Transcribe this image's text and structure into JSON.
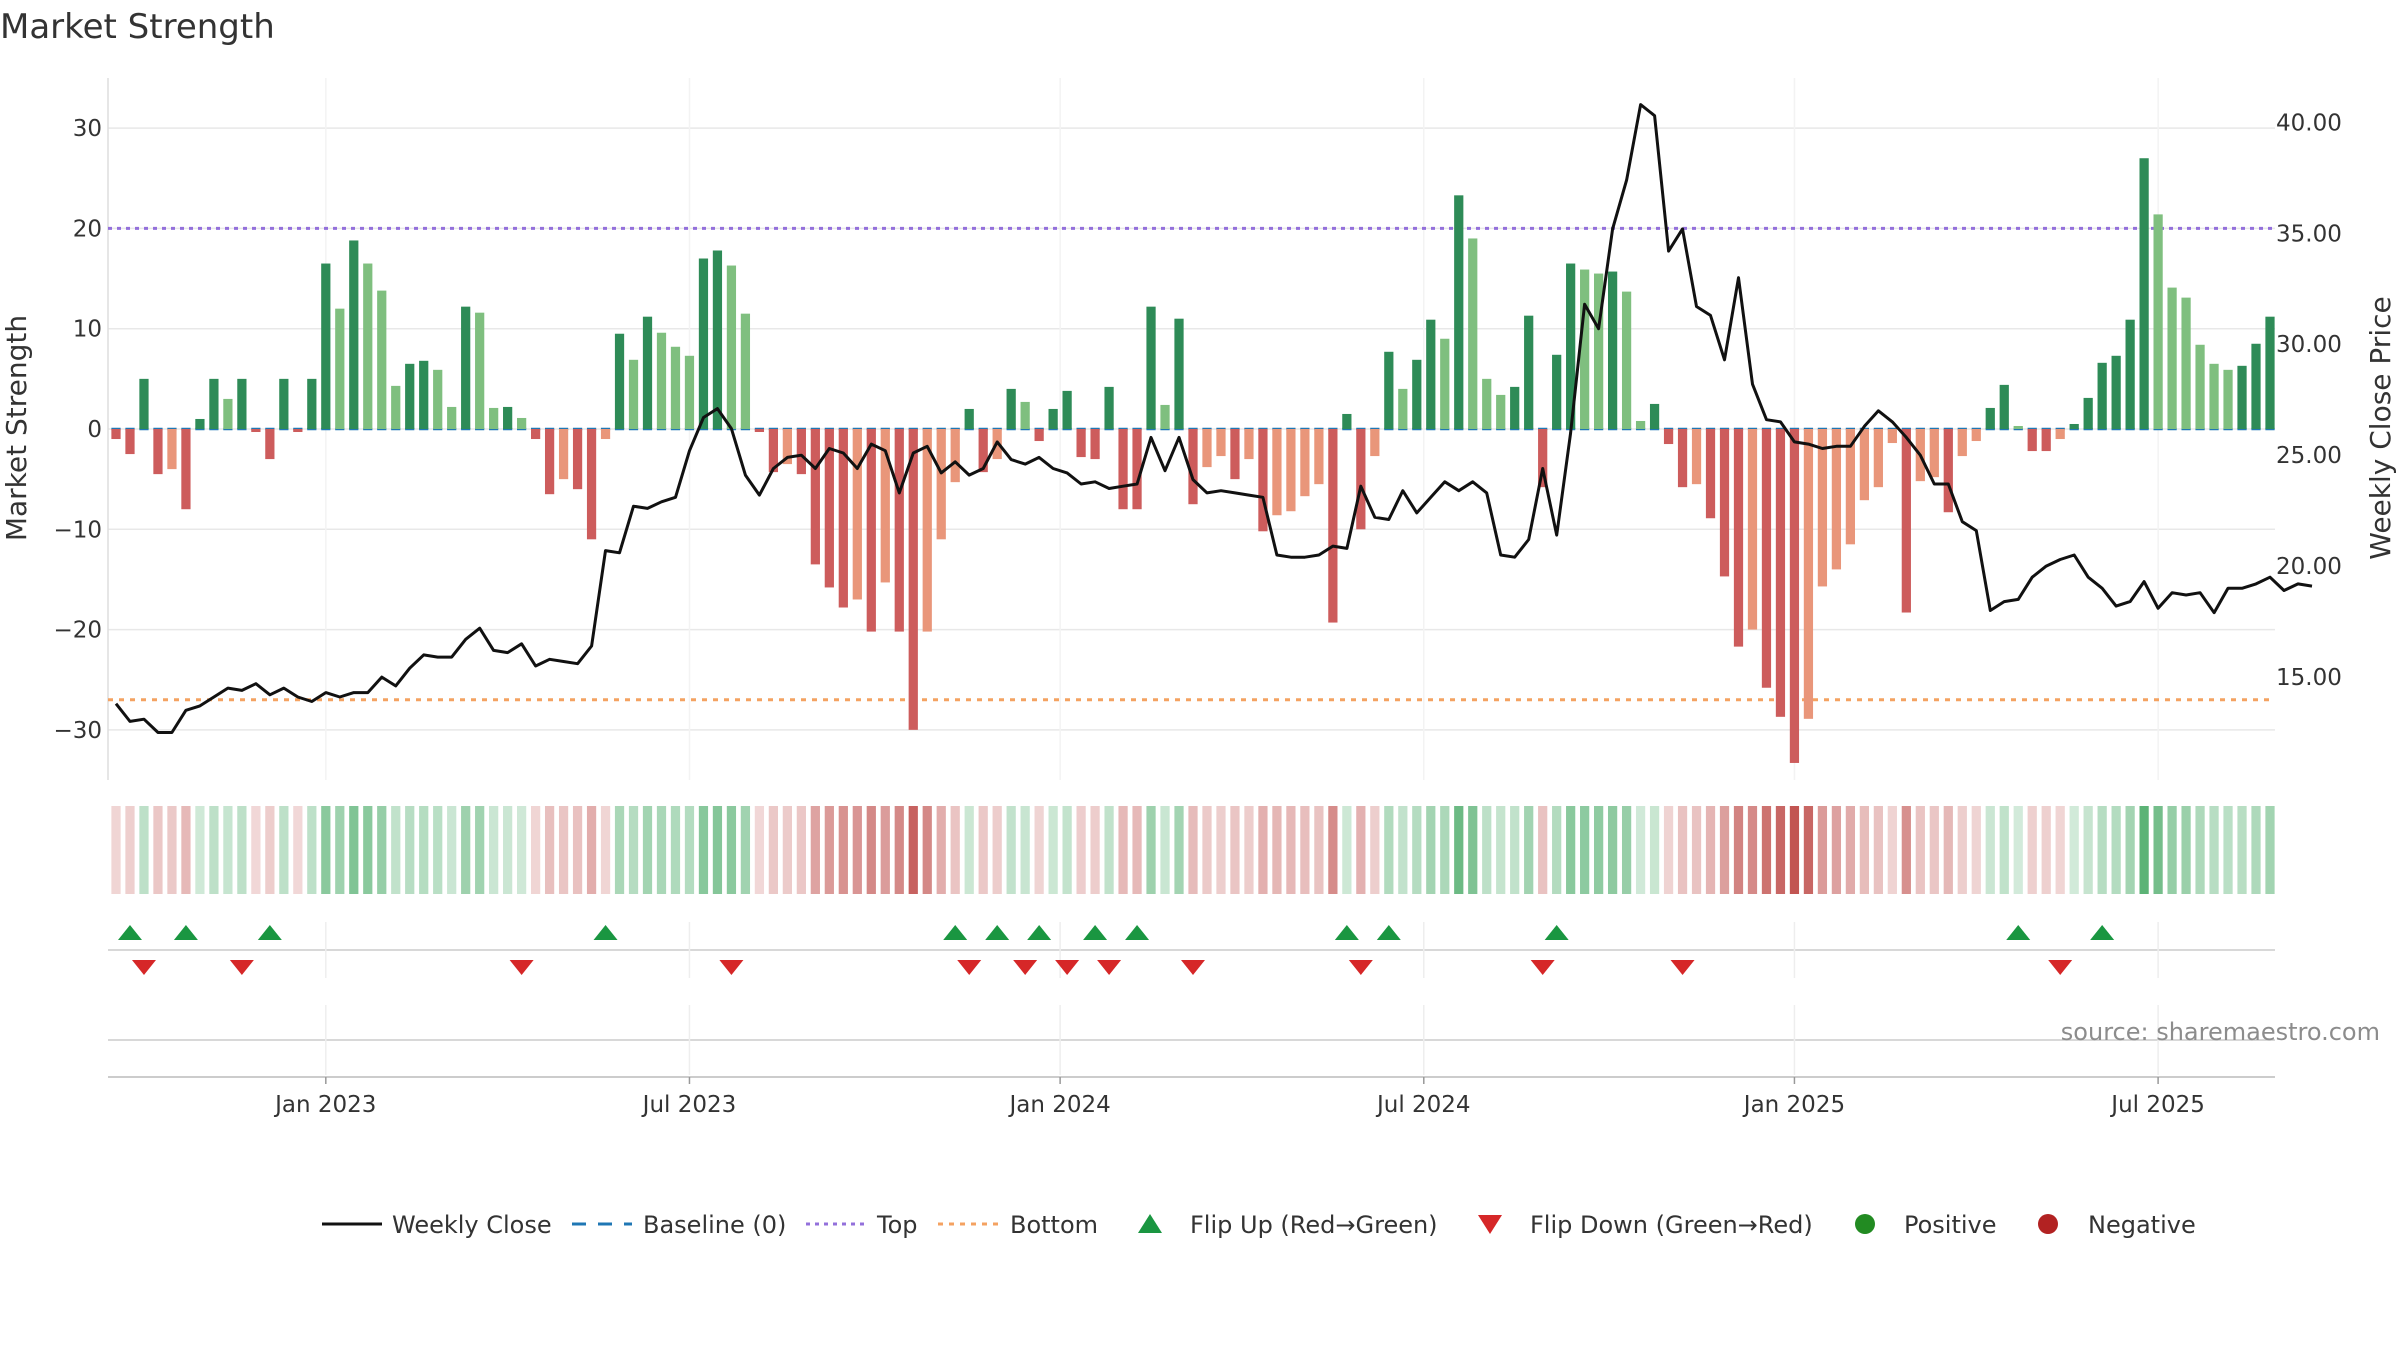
{
  "chart_data": {
    "title": "Market Strength",
    "type": "bar",
    "y_left": {
      "label": "Market Strength",
      "range": [
        -35,
        35
      ],
      "ticks": [
        30,
        20,
        10,
        0,
        -10,
        -20,
        -30
      ],
      "tick_labels": [
        "30",
        "20",
        "10",
        "0",
        "−10",
        "−20",
        "−30"
      ]
    },
    "y_right": {
      "label": "Weekly Close Price",
      "range": [
        10.36,
        42.0
      ],
      "ticks": [
        40,
        35,
        30,
        25,
        20,
        15
      ],
      "tick_labels": [
        "40.00",
        "35.00",
        "30.00",
        "25.00",
        "20.00",
        "15.00"
      ]
    },
    "x_axis": {
      "ticks": [
        {
          "label": "Jan 2023",
          "index": 15
        },
        {
          "label": "Jul 2023",
          "index": 41
        },
        {
          "label": "Jan 2024",
          "index": 67.5
        },
        {
          "label": "Jul 2024",
          "index": 93.5
        },
        {
          "label": "Jan 2025",
          "index": 120
        },
        {
          "label": "Jul 2025",
          "index": 146
        }
      ]
    },
    "reference_lines": {
      "top": 20,
      "bottom": -27,
      "baseline": 0
    },
    "strength": [
      -1,
      -2.5,
      5,
      -4.5,
      -4,
      -8,
      1,
      5,
      3,
      5,
      -0.3,
      -3,
      5,
      -0.3,
      5,
      16.5,
      12,
      18.8,
      16.5,
      13.8,
      4.3,
      6.5,
      6.8,
      5.9,
      2.2,
      12.2,
      11.6,
      2.1,
      2.2,
      1.1,
      -1,
      -6.5,
      -5,
      -6,
      -11,
      -1,
      9.5,
      6.9,
      11.2,
      9.6,
      8.2,
      7.3,
      17,
      17.8,
      16.3,
      11.5,
      -0.3,
      -4.3,
      -3.5,
      -4.5,
      -13.5,
      -15.8,
      -17.8,
      -17,
      -20.2,
      -15.3,
      -20.2,
      -30,
      -20.2,
      -11,
      -5.3,
      2,
      -4.3,
      -3,
      4,
      2.7,
      -1.2,
      2,
      3.8,
      -2.8,
      -3,
      4.2,
      -8,
      -8,
      12.2,
      2.4,
      11,
      -7.5,
      -3.8,
      -2.7,
      -5,
      -3,
      -10.2,
      -8.6,
      -8.2,
      -6.7,
      -5.5,
      -19.3,
      1.5,
      -10,
      -2.7,
      7.7,
      4,
      6.9,
      10.9,
      9,
      23.3,
      19,
      5,
      3.4,
      4.2,
      11.3,
      -5.8,
      7.4,
      16.5,
      15.9,
      15.5,
      15.7,
      13.7,
      0.8,
      2.5,
      -1.5,
      -5.8,
      -5.5,
      -8.9,
      -14.7,
      -21.7,
      -20,
      -25.8,
      -28.7,
      -33.3,
      -28.9,
      -15.7,
      -14,
      -11.5,
      -7.1,
      -5.8,
      -1.4,
      -18.3,
      -5.2,
      -4.8,
      -8.3,
      -2.7,
      -1.2,
      2.1,
      4.4,
      0.3,
      -2.2,
      -2.2,
      -1,
      0.5,
      3.1,
      6.6,
      7.3,
      10.9,
      27,
      21.4,
      14.1,
      13.1,
      8.4,
      6.5,
      5.9,
      6.3,
      8.5,
      11.2
    ],
    "weekly_close": [
      13.8,
      13.0,
      13.1,
      12.5,
      12.5,
      13.5,
      13.7,
      14.1,
      14.5,
      14.4,
      14.7,
      14.2,
      14.5,
      14.1,
      13.9,
      14.3,
      14.1,
      14.3,
      14.3,
      15.0,
      14.6,
      15.4,
      16.0,
      15.9,
      15.9,
      16.7,
      17.2,
      16.2,
      16.1,
      16.5,
      15.5,
      15.8,
      15.7,
      15.6,
      16.4,
      20.7,
      20.6,
      22.7,
      22.6,
      22.9,
      23.1,
      25.2,
      26.7,
      27.1,
      26.2,
      24.1,
      23.2,
      24.4,
      24.9,
      25.0,
      24.4,
      25.3,
      25.1,
      24.4,
      25.5,
      25.2,
      23.3,
      25.1,
      25.4,
      24.2,
      24.7,
      24.1,
      24.4,
      25.6,
      24.8,
      24.6,
      24.9,
      24.4,
      24.2,
      23.7,
      23.8,
      23.5,
      23.6,
      23.7,
      25.8,
      24.3,
      25.8,
      23.9,
      23.3,
      23.4,
      23.3,
      23.2,
      23.1,
      20.5,
      20.4,
      20.4,
      20.5,
      20.9,
      20.8,
      23.6,
      22.2,
      22.1,
      23.4,
      22.4,
      23.1,
      23.8,
      23.4,
      23.8,
      23.3,
      20.5,
      20.4,
      21.2,
      24.4,
      21.4,
      26.0,
      31.8,
      30.7,
      35.2,
      37.4,
      40.8,
      40.3,
      34.2,
      35.2,
      31.7,
      31.3,
      29.3,
      33.0,
      28.2,
      26.6,
      26.5,
      25.6,
      25.5,
      25.3,
      25.4,
      25.4,
      26.3,
      27.0,
      26.5,
      25.8,
      25.0,
      23.7,
      23.7,
      22.0,
      21.6,
      18.0,
      18.4,
      18.5,
      19.5,
      20.0,
      20.3,
      20.5,
      19.5,
      19.0,
      18.2,
      18.4,
      19.3,
      18.1,
      18.8,
      18.7,
      18.8,
      17.9,
      19.0,
      19.0,
      19.2,
      19.5,
      18.9,
      19.2,
      19.1
    ],
    "flip_up_indices": [
      1,
      5,
      11,
      35,
      60,
      63,
      66,
      70,
      73,
      88,
      91,
      103,
      136,
      142
    ],
    "flip_down_indices": [
      2,
      9,
      29,
      44,
      61,
      65,
      68,
      71,
      77,
      89,
      102,
      112,
      139
    ],
    "series": [
      {
        "name": "Weekly Close"
      },
      {
        "name": "Baseline (0)"
      },
      {
        "name": "Top"
      },
      {
        "name": "Bottom"
      },
      {
        "name": "Flip Up (Red→Green)"
      },
      {
        "name": "Flip Down (Green→Red)"
      },
      {
        "name": "Positive"
      },
      {
        "name": "Negative"
      }
    ],
    "colors": {
      "positive_dark": "#2e8b57",
      "positive_light": "#7fbf7f",
      "negative_dark": "#cd5c5c",
      "negative_light": "#e9967a",
      "line": "#111111",
      "baseline": "#1f77b4",
      "top": "#9370db",
      "bottom": "#f4a261",
      "flip_up": "#1a9641",
      "flip_down": "#d62728",
      "legend_positive": "#228b22",
      "legend_negative": "#b22222",
      "grid": "#e8e8e8"
    },
    "source_text": "source: sharemaestro.com"
  }
}
